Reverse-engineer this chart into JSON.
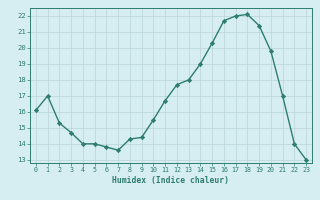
{
  "x": [
    0,
    1,
    2,
    3,
    4,
    5,
    6,
    7,
    8,
    9,
    10,
    11,
    12,
    13,
    14,
    15,
    16,
    17,
    18,
    19,
    20,
    21,
    22,
    23
  ],
  "y": [
    16.1,
    17.0,
    15.3,
    14.7,
    14.0,
    14.0,
    13.8,
    13.6,
    14.3,
    14.4,
    15.5,
    16.7,
    17.7,
    18.0,
    19.0,
    20.3,
    21.7,
    22.0,
    22.1,
    21.4,
    19.8,
    17.0,
    14.0,
    13.0
  ],
  "xlim": [
    -0.5,
    23.5
  ],
  "ylim": [
    12.8,
    22.5
  ],
  "yticks": [
    13,
    14,
    15,
    16,
    17,
    18,
    19,
    20,
    21,
    22
  ],
  "xticks": [
    0,
    1,
    2,
    3,
    4,
    5,
    6,
    7,
    8,
    9,
    10,
    11,
    12,
    13,
    14,
    15,
    16,
    17,
    18,
    19,
    20,
    21,
    22,
    23
  ],
  "xlabel": "Humidex (Indice chaleur)",
  "line_color": "#2e7d6e",
  "marker": "D",
  "bg_color": "#d6eef2",
  "grid_color": "#b8d4d8",
  "tick_label_color": "#2e7d6e",
  "axis_color": "#2e7d6e"
}
